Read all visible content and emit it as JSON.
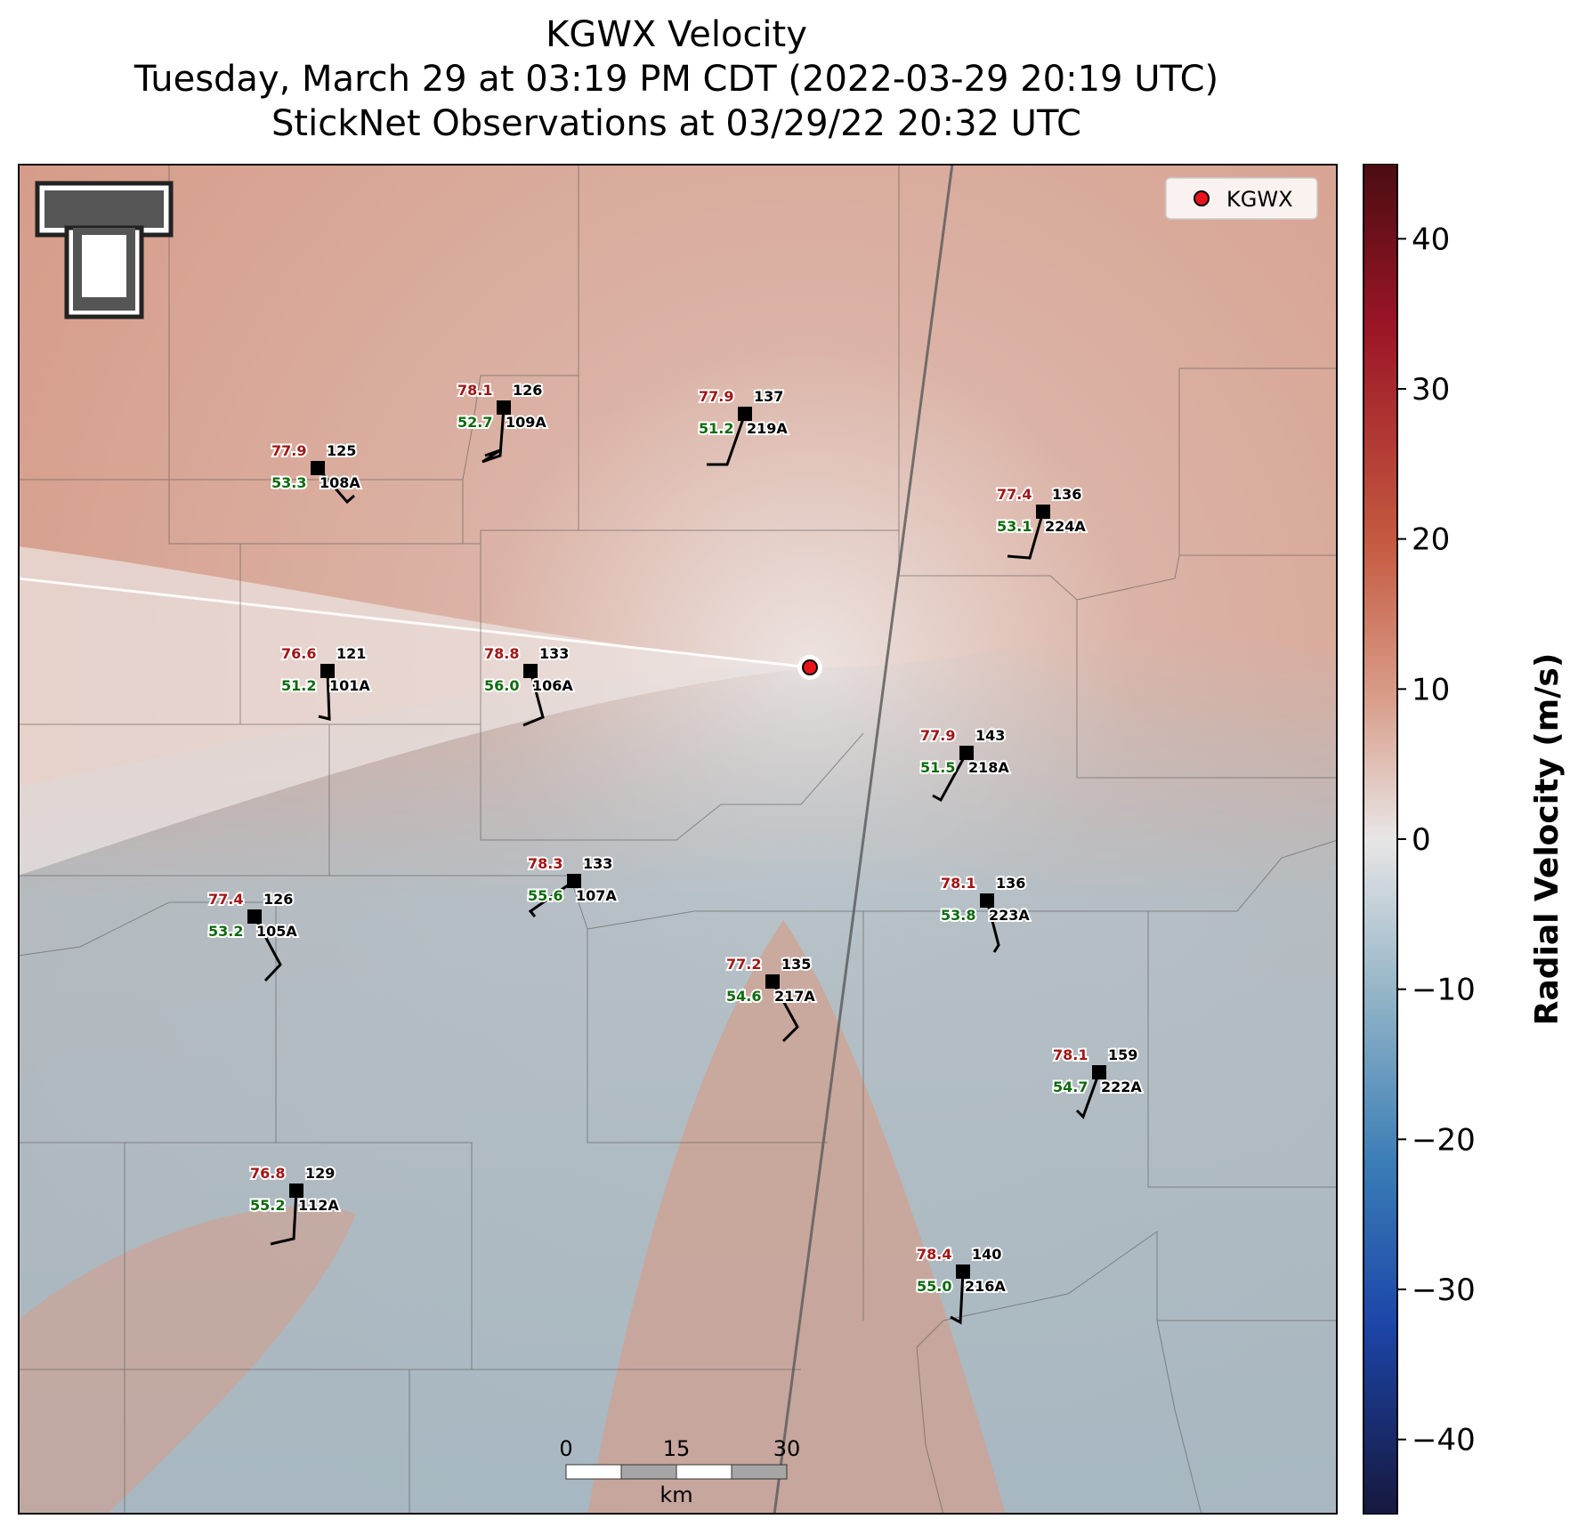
{
  "title": {
    "line1": "KGWX Velocity",
    "line2": "Tuesday, March 29 at 03:19 PM CDT (2022-03-29 20:19 UTC)",
    "line3": "StickNet Observations at 03/29/22 20:32 UTC"
  },
  "legend": {
    "label": "KGWX",
    "marker_color": "#e8141b"
  },
  "colorbar": {
    "label": "Radial Velocity (m/s)",
    "ticks": [
      "40",
      "30",
      "20",
      "10",
      "0",
      "−10",
      "−20",
      "−30",
      "−40"
    ],
    "range": [
      -45,
      45
    ],
    "colors": [
      "#16183d",
      "#1a3a9a",
      "#2f6fb4",
      "#6fa4c2",
      "#e8e6e6",
      "#d59887",
      "#c4563c",
      "#b02a27",
      "#4a0d12"
    ]
  },
  "scalebar": {
    "ticks": [
      "0",
      "15",
      "30"
    ],
    "unit": "km"
  },
  "logo": {
    "name": "texas-tech-double-t-logo",
    "text": "TT"
  },
  "stations": [
    {
      "id": "108A",
      "temp": "77.9",
      "dew": "53.3",
      "pres": "125"
    },
    {
      "id": "109A",
      "temp": "78.1",
      "dew": "52.7",
      "pres": "126"
    },
    {
      "id": "219A",
      "temp": "77.9",
      "dew": "51.2",
      "pres": "137"
    },
    {
      "id": "224A",
      "temp": "77.4",
      "dew": "53.1",
      "pres": "136"
    },
    {
      "id": "101A",
      "temp": "76.6",
      "dew": "51.2",
      "pres": "121"
    },
    {
      "id": "106A",
      "temp": "78.8",
      "dew": "56.0",
      "pres": "133"
    },
    {
      "id": "218A",
      "temp": "77.9",
      "dew": "51.5",
      "pres": "143"
    },
    {
      "id": "107A",
      "temp": "78.3",
      "dew": "55.6",
      "pres": "133"
    },
    {
      "id": "223A",
      "temp": "78.1",
      "dew": "53.8",
      "pres": "136"
    },
    {
      "id": "105A",
      "temp": "77.4",
      "dew": "53.2",
      "pres": "126"
    },
    {
      "id": "217A",
      "temp": "77.2",
      "dew": "54.6",
      "pres": "135"
    },
    {
      "id": "222A",
      "temp": "78.1",
      "dew": "54.7",
      "pres": "159"
    },
    {
      "id": "112A",
      "temp": "76.8",
      "dew": "55.2",
      "pres": "129"
    },
    {
      "id": "216A",
      "temp": "78.4",
      "dew": "55.0",
      "pres": "140"
    }
  ]
}
